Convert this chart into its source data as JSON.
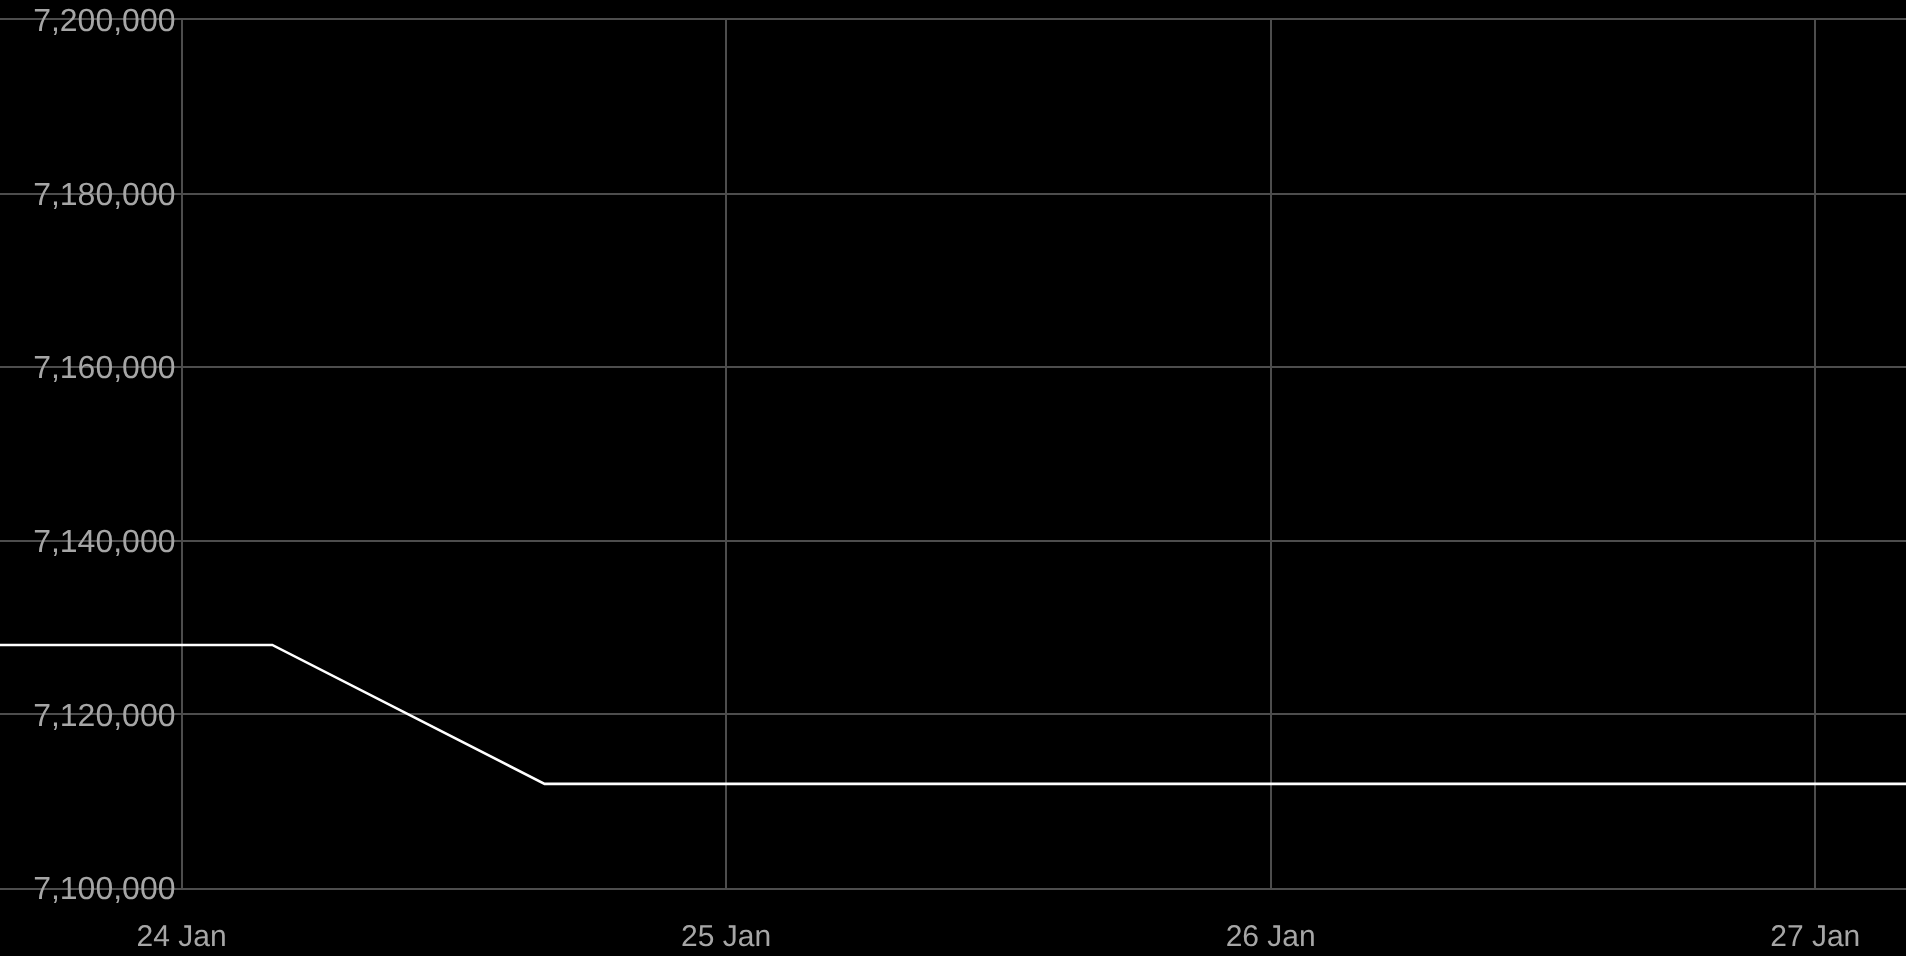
{
  "chart_data": {
    "type": "line",
    "x": [
      "--01-23T16:00",
      "--01-24T04:00",
      "--01-24T16:00",
      "--01-27T04:00"
    ],
    "series": [
      {
        "color": "#ffffff",
        "values": [
          7128000,
          7128000,
          7112000,
          7112000
        ]
      }
    ],
    "xlim": [
      "--01-23T16:00",
      "--01-27T04:00"
    ],
    "xticks": [
      {
        "value": "--01-24",
        "label": "24 Jan"
      },
      {
        "value": "--01-25",
        "label": "25 Jan"
      },
      {
        "value": "--01-26",
        "label": "26 Jan"
      },
      {
        "value": "--01-27",
        "label": "27 Jan"
      }
    ],
    "ylim": [
      7100000,
      7200000
    ],
    "yticks": [
      {
        "value": 7100000,
        "label": "7,100,000"
      },
      {
        "value": 7120000,
        "label": "7,120,000"
      },
      {
        "value": 7140000,
        "label": "7,140,000"
      },
      {
        "value": 7160000,
        "label": "7,160,000"
      },
      {
        "value": 7180000,
        "label": "7,180,000"
      },
      {
        "value": 7200000,
        "label": "7,200,000"
      }
    ],
    "grid": true,
    "marker": "none",
    "line_style": "solid"
  }
}
